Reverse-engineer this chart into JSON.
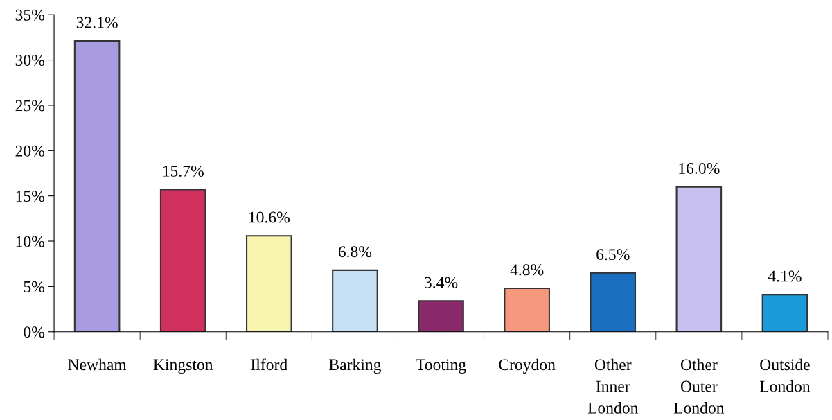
{
  "chart_data": {
    "type": "bar",
    "categories": [
      "Newham",
      "Kingston",
      "Ilford",
      "Barking",
      "Tooting",
      "Croydon",
      "Other\nInner\nLondon",
      "Other\nOuter\nLondon",
      "Outside\nLondon"
    ],
    "values": [
      32.1,
      15.7,
      10.6,
      6.8,
      3.4,
      4.8,
      6.5,
      16.0,
      4.1
    ],
    "colors": [
      "#a89be0",
      "#d0305e",
      "#f8f5b0",
      "#c5e0f5",
      "#8b2a6a",
      "#f6987e",
      "#1a6ec0",
      "#c8c0ee",
      "#1a9ad8"
    ],
    "value_labels": [
      "32.1%",
      "15.7%",
      "10.6%",
      "6.8%",
      "3.4%",
      "4.8%",
      "6.5%",
      "16.0%",
      "4.1%"
    ],
    "ylim": [
      0,
      35
    ],
    "yticks": [
      {
        "value": 0,
        "label": "0%"
      },
      {
        "value": 5,
        "label": "5%"
      },
      {
        "value": 10,
        "label": "10%"
      },
      {
        "value": 15,
        "label": "15%"
      },
      {
        "value": 20,
        "label": "20%"
      },
      {
        "value": 25,
        "label": "25%"
      },
      {
        "value": 30,
        "label": "30%"
      },
      {
        "value": 35,
        "label": "35%"
      }
    ],
    "grid": false,
    "legend": false
  }
}
